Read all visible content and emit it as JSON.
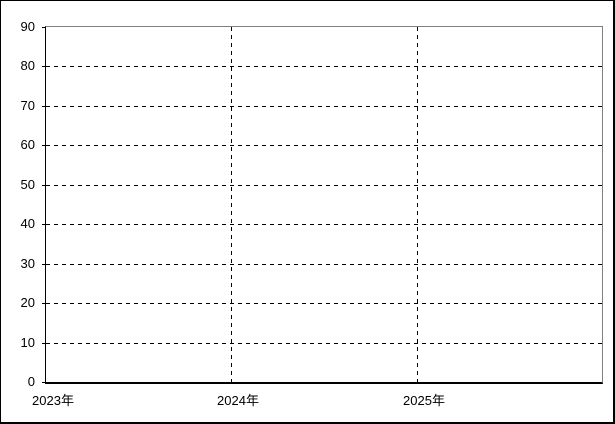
{
  "chart_data": {
    "type": "line",
    "title": "",
    "series": [],
    "categories": [],
    "x_axis": {
      "tick_labels": [
        "2023年",
        "2024年",
        "2025年"
      ],
      "num_intervals": 3,
      "gridlines_at_intervals": [
        1,
        2
      ]
    },
    "y_axis": {
      "min": 0,
      "max": 90,
      "step": 10,
      "tick_labels": [
        "0",
        "10",
        "20",
        "30",
        "40",
        "50",
        "60",
        "70",
        "80",
        "90"
      ],
      "dashed_gridline_values": [
        10,
        20,
        30,
        40,
        50,
        60,
        70,
        80
      ]
    },
    "ylim": [
      0,
      90
    ],
    "grid": {
      "horizontal": "dashed",
      "vertical": "dashed"
    },
    "legend": null,
    "plot_background": "#ffffff"
  },
  "colors": {
    "background": "#ffffff",
    "outer_border": "#000000",
    "axis_line": "#000000",
    "frame_top_right": "#808080",
    "gridline": "#000000",
    "label_text": "#000000"
  }
}
